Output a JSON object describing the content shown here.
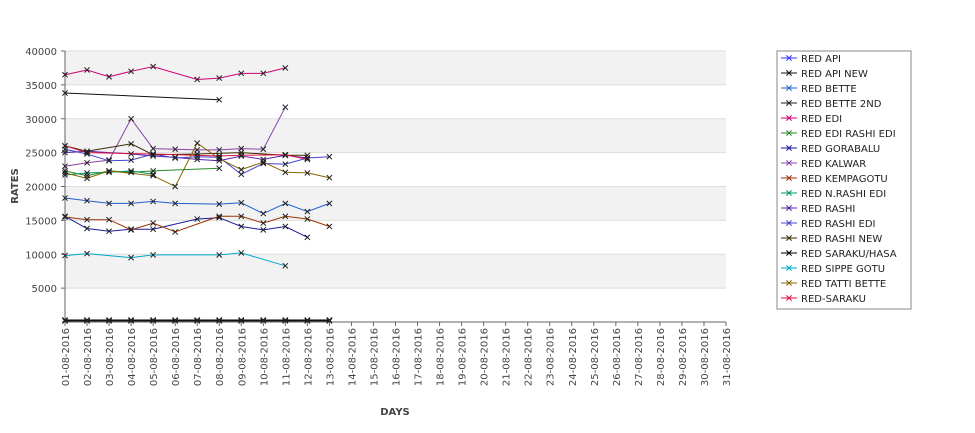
{
  "chart_data": {
    "type": "line",
    "xlabel": "DAYS",
    "ylabel": "RATES",
    "ylim": [
      0,
      40000
    ],
    "y_ticks": [
      5000,
      10000,
      15000,
      20000,
      25000,
      30000,
      35000,
      40000
    ],
    "grid": true,
    "legend_position": "right",
    "categories": [
      "01-08-2016",
      "02-08-2016",
      "03-08-2016",
      "04-08-2016",
      "05-08-2016",
      "06-08-2016",
      "07-08-2016",
      "08-08-2016",
      "09-08-2016",
      "10-08-2016",
      "11-08-2016",
      "12-08-2016",
      "13-08-2016",
      "14-08-2016",
      "15-08-2016",
      "16-08-2016",
      "17-08-2016",
      "18-08-2016",
      "19-08-2016",
      "20-08-2016",
      "21-08-2016",
      "22-08-2016",
      "23-08-2016",
      "24-08-2016",
      "25-08-2016",
      "26-08-2016",
      "27-08-2016",
      "28-08-2016",
      "29-08-2016",
      "30-08-2016",
      "31-08-2016"
    ],
    "series": [
      {
        "name": "RED API",
        "color": "#3333ff",
        "points": [
          [
            0,
            250
          ],
          [
            1,
            250
          ],
          [
            2,
            250
          ],
          [
            3,
            250
          ],
          [
            4,
            250
          ],
          [
            5,
            250
          ],
          [
            6,
            250
          ],
          [
            7,
            250
          ],
          [
            8,
            250
          ],
          [
            9,
            250
          ],
          [
            10,
            250
          ],
          [
            11,
            250
          ],
          [
            12,
            250
          ]
        ]
      },
      {
        "name": "RED API NEW",
        "color": "#111111",
        "points": [
          [
            0,
            33800
          ],
          [
            7,
            32800
          ]
        ]
      },
      {
        "name": "RED BETTE",
        "color": "#1f5fcc",
        "points": [
          [
            0,
            18300
          ],
          [
            1,
            17900
          ],
          [
            2,
            17500
          ],
          [
            3,
            17500
          ],
          [
            4,
            17800
          ],
          [
            5,
            17500
          ],
          [
            7,
            17400
          ],
          [
            8,
            17600
          ],
          [
            9,
            16000
          ],
          [
            10,
            17500
          ],
          [
            11,
            16300
          ],
          [
            12,
            17500
          ]
        ]
      },
      {
        "name": "RED BETTE 2ND",
        "color": "#222222",
        "points": [
          [
            0,
            150
          ],
          [
            1,
            150
          ],
          [
            2,
            150
          ],
          [
            3,
            150
          ],
          [
            4,
            150
          ],
          [
            5,
            150
          ],
          [
            6,
            150
          ],
          [
            7,
            150
          ],
          [
            8,
            150
          ],
          [
            9,
            150
          ],
          [
            10,
            150
          ],
          [
            11,
            150
          ],
          [
            12,
            150
          ]
        ]
      },
      {
        "name": "RED EDI",
        "color": "#cc0077",
        "points": [
          [
            0,
            36500
          ],
          [
            1,
            37200
          ],
          [
            2,
            36200
          ],
          [
            3,
            37000
          ],
          [
            4,
            37700
          ],
          [
            6,
            35800
          ],
          [
            7,
            36000
          ],
          [
            8,
            36700
          ],
          [
            9,
            36700
          ],
          [
            10,
            37500
          ]
        ]
      },
      {
        "name": "RED EDI RASHI EDI",
        "color": "#2a8a2a",
        "points": [
          [
            0,
            22300
          ],
          [
            1,
            21600
          ],
          [
            2,
            22300
          ],
          [
            3,
            22100
          ],
          [
            4,
            22300
          ],
          [
            7,
            22700
          ]
        ]
      },
      {
        "name": "RED GORABALU",
        "color": "#1a1a99",
        "points": [
          [
            0,
            15600
          ],
          [
            1,
            13800
          ],
          [
            2,
            13400
          ],
          [
            3,
            13700
          ],
          [
            4,
            13700
          ],
          [
            6,
            15200
          ],
          [
            7,
            15400
          ],
          [
            8,
            14100
          ],
          [
            9,
            13600
          ],
          [
            10,
            14100
          ],
          [
            11,
            12500
          ]
        ]
      },
      {
        "name": "RED KALWAR",
        "color": "#8844aa",
        "points": [
          [
            0,
            23000
          ],
          [
            1,
            23500
          ],
          [
            2,
            23900
          ],
          [
            3,
            30000
          ],
          [
            4,
            25600
          ],
          [
            5,
            25500
          ],
          [
            6,
            25400
          ],
          [
            7,
            25400
          ],
          [
            8,
            25600
          ],
          [
            9,
            25500
          ],
          [
            10,
            31700
          ]
        ]
      },
      {
        "name": "RED KEMPAGOTU",
        "color": "#993300",
        "points": [
          [
            0,
            15500
          ],
          [
            1,
            15100
          ],
          [
            2,
            15100
          ],
          [
            3,
            13600
          ],
          [
            4,
            14600
          ],
          [
            5,
            13300
          ],
          [
            7,
            15600
          ],
          [
            8,
            15600
          ],
          [
            9,
            14600
          ],
          [
            10,
            15600
          ],
          [
            11,
            15200
          ],
          [
            12,
            14100
          ]
        ]
      },
      {
        "name": "RED N.RASHI EDI",
        "color": "#009966",
        "points": [
          [
            0,
            21700
          ],
          [
            1,
            22000
          ],
          [
            2,
            22100
          ],
          [
            3,
            22300
          ],
          [
            4,
            21800
          ]
        ]
      },
      {
        "name": "RED RASHI",
        "color": "#5522aa",
        "points": [
          [
            0,
            25000
          ],
          [
            1,
            25200
          ],
          [
            3,
            24800
          ],
          [
            4,
            24500
          ],
          [
            5,
            24300
          ],
          [
            6,
            24000
          ],
          [
            7,
            23800
          ],
          [
            8,
            24500
          ],
          [
            9,
            24000
          ],
          [
            10,
            24600
          ],
          [
            11,
            24200
          ]
        ]
      },
      {
        "name": "RED RASHI EDI",
        "color": "#4444cc",
        "points": [
          [
            0,
            25500
          ],
          [
            1,
            24800
          ],
          [
            2,
            23800
          ],
          [
            3,
            23900
          ],
          [
            4,
            24800
          ],
          [
            5,
            24200
          ],
          [
            6,
            24400
          ],
          [
            7,
            24300
          ],
          [
            8,
            21800
          ],
          [
            9,
            23400
          ],
          [
            10,
            23300
          ],
          [
            11,
            24200
          ],
          [
            12,
            24400
          ]
        ]
      },
      {
        "name": "RED RASHI NEW",
        "color": "#3a2a00",
        "points": [
          [
            0,
            26000
          ],
          [
            1,
            25200
          ],
          [
            3,
            26300
          ],
          [
            4,
            24700
          ],
          [
            6,
            24800
          ],
          [
            8,
            25000
          ],
          [
            10,
            24600
          ],
          [
            11,
            24600
          ]
        ]
      },
      {
        "name": "RED SARAKU/HASA",
        "color": "#000000",
        "points": [
          [
            0,
            300
          ],
          [
            1,
            300
          ],
          [
            2,
            300
          ],
          [
            3,
            300
          ],
          [
            4,
            300
          ],
          [
            5,
            300
          ],
          [
            6,
            300
          ],
          [
            7,
            300
          ],
          [
            8,
            300
          ],
          [
            9,
            300
          ],
          [
            10,
            300
          ],
          [
            11,
            300
          ],
          [
            12,
            300
          ]
        ]
      },
      {
        "name": "RED SIPPE GOTU",
        "color": "#00aacc",
        "points": [
          [
            0,
            9800
          ],
          [
            1,
            10100
          ],
          [
            3,
            9500
          ],
          [
            4,
            9900
          ],
          [
            7,
            9900
          ],
          [
            8,
            10200
          ],
          [
            10,
            8300
          ]
        ]
      },
      {
        "name": "RED TATTI BETTE",
        "color": "#886600",
        "points": [
          [
            0,
            22000
          ],
          [
            1,
            21200
          ],
          [
            2,
            22300
          ],
          [
            4,
            21600
          ],
          [
            5,
            20000
          ],
          [
            6,
            26400
          ],
          [
            7,
            24100
          ],
          [
            8,
            22500
          ],
          [
            9,
            23600
          ],
          [
            10,
            22100
          ],
          [
            11,
            22000
          ],
          [
            12,
            21300
          ]
        ]
      },
      {
        "name": "RED-SARAKU",
        "color": "#dd1144",
        "points": [
          [
            0,
            26000
          ],
          [
            1,
            25000
          ],
          [
            4,
            24800
          ],
          [
            7,
            24500
          ],
          [
            8,
            24600
          ],
          [
            10,
            24700
          ],
          [
            11,
            24000
          ]
        ]
      }
    ]
  }
}
